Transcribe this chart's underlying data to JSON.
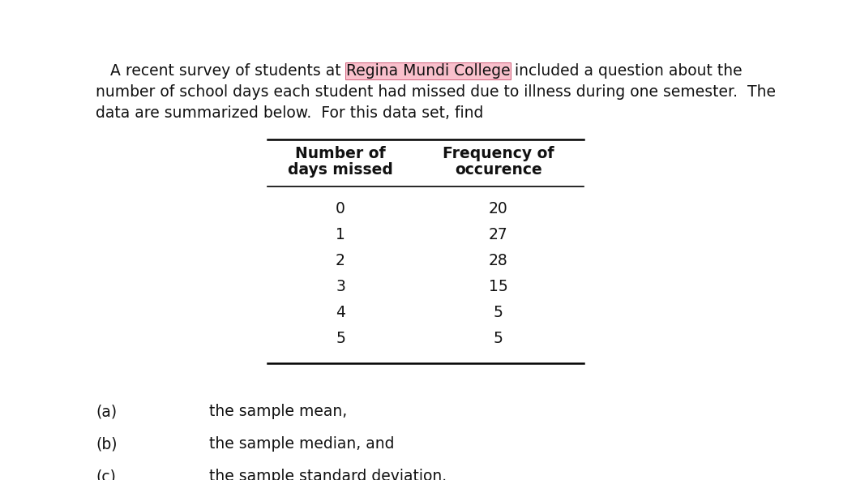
{
  "background_color": "#ffffff",
  "line1_prefix": "   A recent survey of students at ",
  "line1_highlight": "Regina Mundi College",
  "line1_suffix": " included a question about the",
  "line2": "number of school days each student had missed due to illness during one semester.  The",
  "line3": "data are summarized below.  For this data set, find",
  "highlight_color": "#f9c0cc",
  "highlight_border": "#d0607a",
  "col1_header_line1": "Number of",
  "col1_header_line2": "days missed",
  "col2_header_line1": "Frequency of",
  "col2_header_line2": "occurence",
  "days_missed": [
    0,
    1,
    2,
    3,
    4,
    5
  ],
  "frequency": [
    20,
    27,
    28,
    15,
    5,
    5
  ],
  "items": [
    [
      "(a)",
      "the sample mean,"
    ],
    [
      "(b)",
      "the sample median, and"
    ],
    [
      "(c)",
      "the sample standard deviation."
    ]
  ],
  "font_size_body": 13.5,
  "font_size_table": 13.5,
  "text_color": "#111111"
}
